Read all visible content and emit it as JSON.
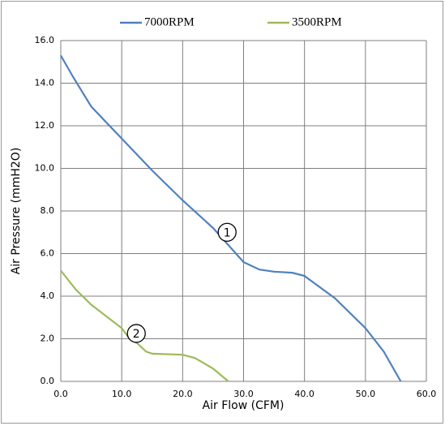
{
  "chart_data": {
    "type": "line",
    "x_label": "Air Flow (CFM)",
    "y_label": "Air Pressure (mmH2O)",
    "xlim": [
      0,
      60
    ],
    "ylim": [
      0,
      16
    ],
    "xticks": [
      {
        "value": 0,
        "label": "0.0"
      },
      {
        "value": 10,
        "label": "10.0"
      },
      {
        "value": 20,
        "label": "20.0"
      },
      {
        "value": 30,
        "label": "30.0"
      },
      {
        "value": 40,
        "label": "40.0"
      },
      {
        "value": 50,
        "label": "50.0"
      },
      {
        "value": 60,
        "label": "60.0"
      }
    ],
    "yticks": [
      {
        "value": 0,
        "label": "0.0"
      },
      {
        "value": 2,
        "label": "2.0"
      },
      {
        "value": 4,
        "label": "4.0"
      },
      {
        "value": 6,
        "label": "6.0"
      },
      {
        "value": 8,
        "label": "8.0"
      },
      {
        "value": 10,
        "label": "10.0"
      },
      {
        "value": 12,
        "label": "12.0"
      },
      {
        "value": 14,
        "label": "14.0"
      },
      {
        "value": 16,
        "label": "16.0"
      }
    ],
    "grid": true,
    "legend": "top",
    "series": [
      {
        "name": "7000RPM",
        "color": "#4f81bd",
        "x": [
          0,
          2,
          5,
          10,
          15,
          20,
          25,
          30,
          32.6,
          35,
          38,
          40,
          45,
          50,
          53,
          55.8
        ],
        "values": [
          15.3,
          14.3,
          12.9,
          11.4,
          9.9,
          8.5,
          7.2,
          5.6,
          5.25,
          5.15,
          5.1,
          4.95,
          3.9,
          2.5,
          1.4,
          0.0
        ]
      },
      {
        "name": "3500RPM",
        "color": "#9bbb59",
        "x": [
          0,
          2.5,
          5,
          10,
          11.3,
          12.5,
          14,
          15,
          20,
          22,
          25,
          27.5
        ],
        "values": [
          5.2,
          4.3,
          3.6,
          2.5,
          2.0,
          1.8,
          1.4,
          1.3,
          1.25,
          1.1,
          0.6,
          0.0
        ]
      }
    ],
    "annotations": [
      {
        "text": "1",
        "x": 27.3,
        "y": 7.0
      },
      {
        "text": "2",
        "x": 12.4,
        "y": 2.25
      }
    ]
  }
}
